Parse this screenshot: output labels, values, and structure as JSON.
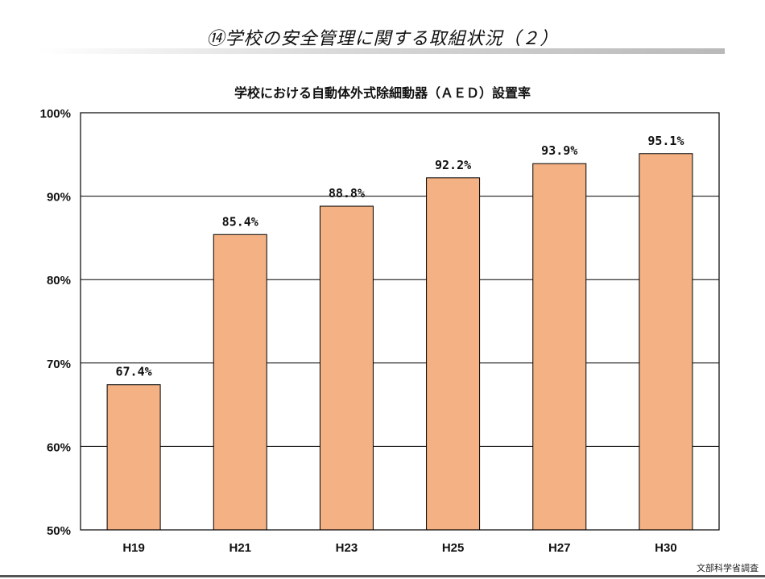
{
  "header": {
    "title": "⑭学校の安全管理に関する取組状況（２）"
  },
  "chart_data": {
    "type": "bar",
    "title": "学校における自動体外式除細動器（ＡＥＤ）設置率",
    "categories": [
      "H19",
      "H21",
      "H23",
      "H25",
      "H27",
      "H30"
    ],
    "values": [
      67.4,
      85.4,
      88.8,
      92.2,
      93.9,
      95.1
    ],
    "value_labels": [
      "67.4%",
      "85.4%",
      "88.8%",
      "92.2%",
      "93.9%",
      "95.1%"
    ],
    "ylim": [
      50,
      100
    ],
    "yticks": [
      50,
      60,
      70,
      80,
      90,
      100
    ],
    "ytick_labels": [
      "50%",
      "60%",
      "70%",
      "80%",
      "90%",
      "100%"
    ],
    "xlabel": "",
    "ylabel": "",
    "grid": true,
    "bar_color": "#f4b183",
    "bar_edge_color": "#000000"
  },
  "footer": {
    "source": "文部科学省調査"
  }
}
